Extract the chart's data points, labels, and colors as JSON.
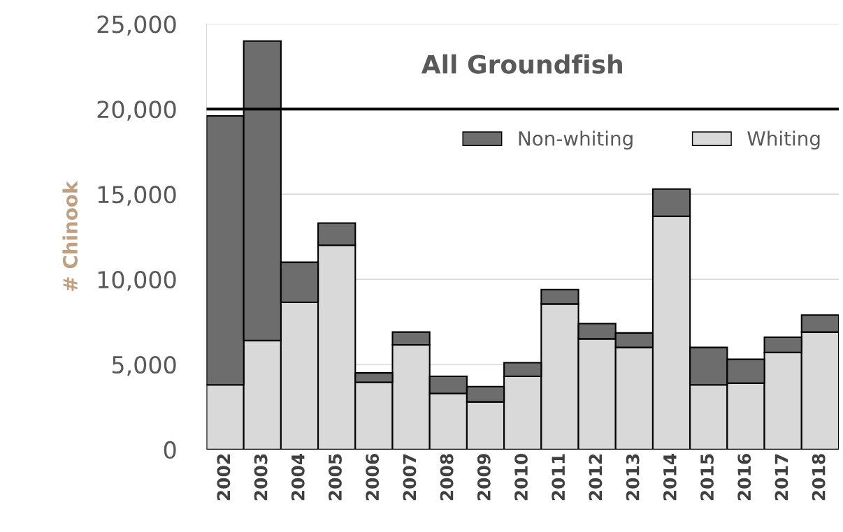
{
  "chart_data": {
    "type": "bar",
    "title": "All Groundfish",
    "ylabel": "# Chinook",
    "stacked": true,
    "categories": [
      "2002",
      "2003",
      "2004",
      "2005",
      "2006",
      "2007",
      "2008",
      "2009",
      "2010",
      "2011",
      "2012",
      "2013",
      "2014",
      "2015",
      "2016",
      "2017",
      "2018"
    ],
    "series": [
      {
        "name": "Whiting",
        "color": "#d9d9d9",
        "values": [
          3800,
          6400,
          8650,
          12000,
          3950,
          6150,
          3300,
          2800,
          4300,
          8550,
          6500,
          6000,
          13700,
          3800,
          3900,
          5700,
          6900
        ]
      },
      {
        "name": "Non-whiting",
        "color": "#6d6d6d",
        "values": [
          15800,
          17600,
          2350,
          1300,
          550,
          750,
          1000,
          900,
          800,
          850,
          900,
          850,
          1600,
          2200,
          1400,
          900,
          1000
        ]
      }
    ],
    "ylim": [
      0,
      25000
    ],
    "yticks": [
      {
        "value": 0,
        "label": "0"
      },
      {
        "value": 5000,
        "label": "5,000"
      },
      {
        "value": 10000,
        "label": "10,000"
      },
      {
        "value": 15000,
        "label": "15,000"
      },
      {
        "value": 20000,
        "label": "20,000"
      },
      {
        "value": 25000,
        "label": "25,000"
      }
    ],
    "ref_lines": [
      {
        "axis": "y",
        "value": 20000,
        "color": "#000000"
      }
    ],
    "grid": "y",
    "legend": "top right"
  }
}
